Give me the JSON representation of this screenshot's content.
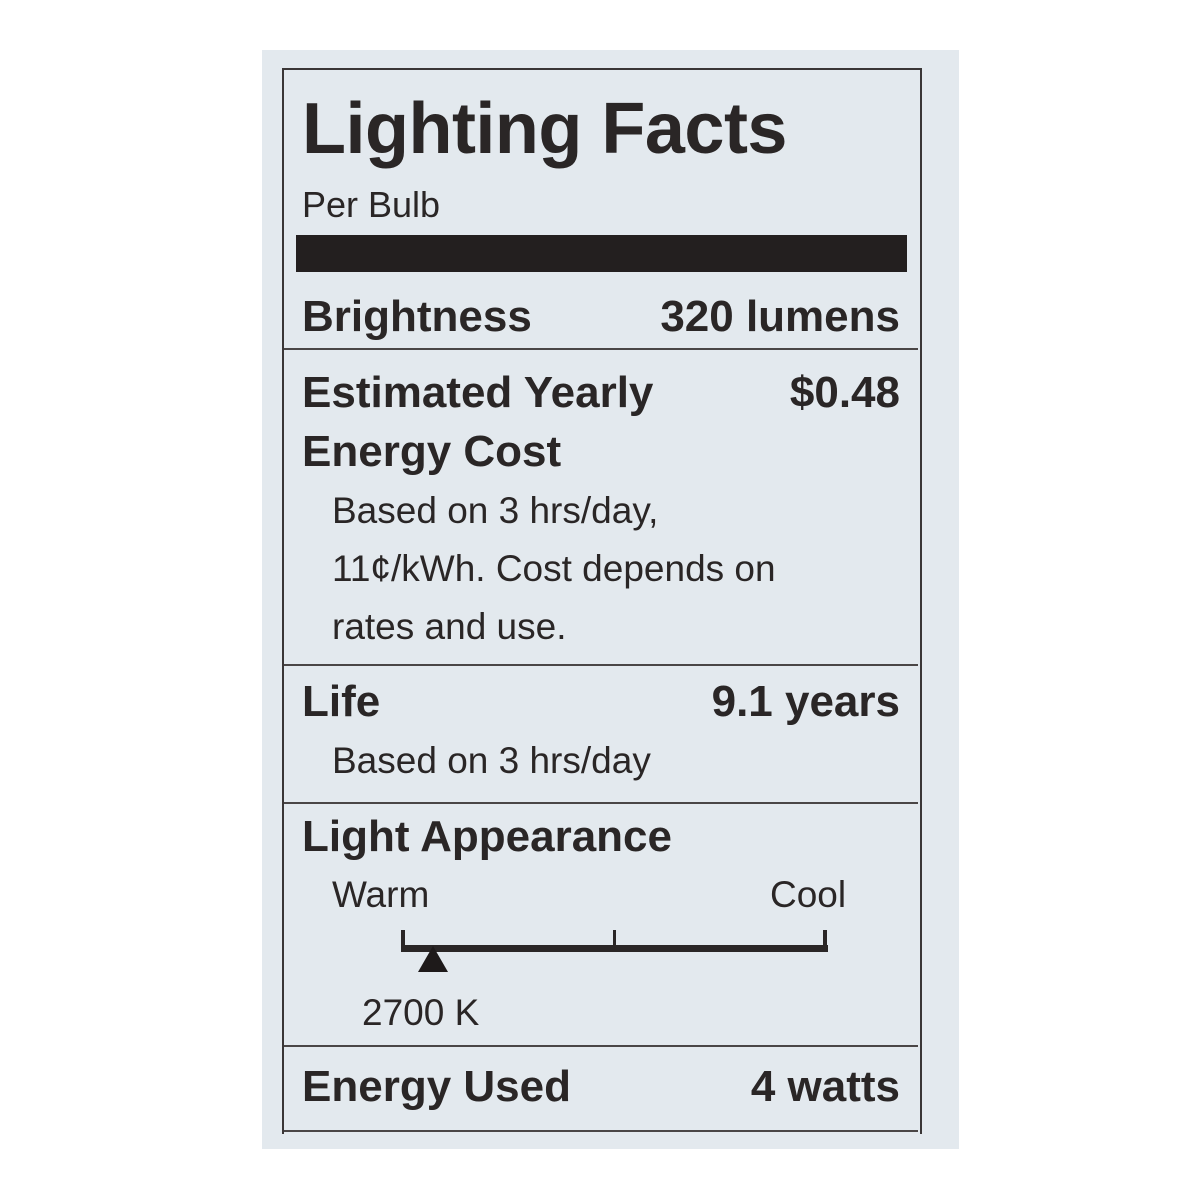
{
  "title": "Lighting Facts",
  "subtitle": "Per Bulb",
  "brightness": {
    "label": "Brightness",
    "value": "320 lumens"
  },
  "cost": {
    "label_line1": "Estimated Yearly",
    "label_line2": "Energy Cost",
    "value": "$0.48",
    "note_line1": "Based on 3 hrs/day,",
    "note_line2": "11¢/kWh. Cost depends on",
    "note_line3": "rates and use."
  },
  "life": {
    "label": "Life",
    "value": "9.1 years",
    "note": "Based on 3 hrs/day"
  },
  "appearance": {
    "label": "Light Appearance",
    "warm_label": "Warm",
    "cool_label": "Cool",
    "value": "2700 K",
    "scale_position": 0.07
  },
  "energy": {
    "label": "Energy Used",
    "value": "4 watts"
  }
}
